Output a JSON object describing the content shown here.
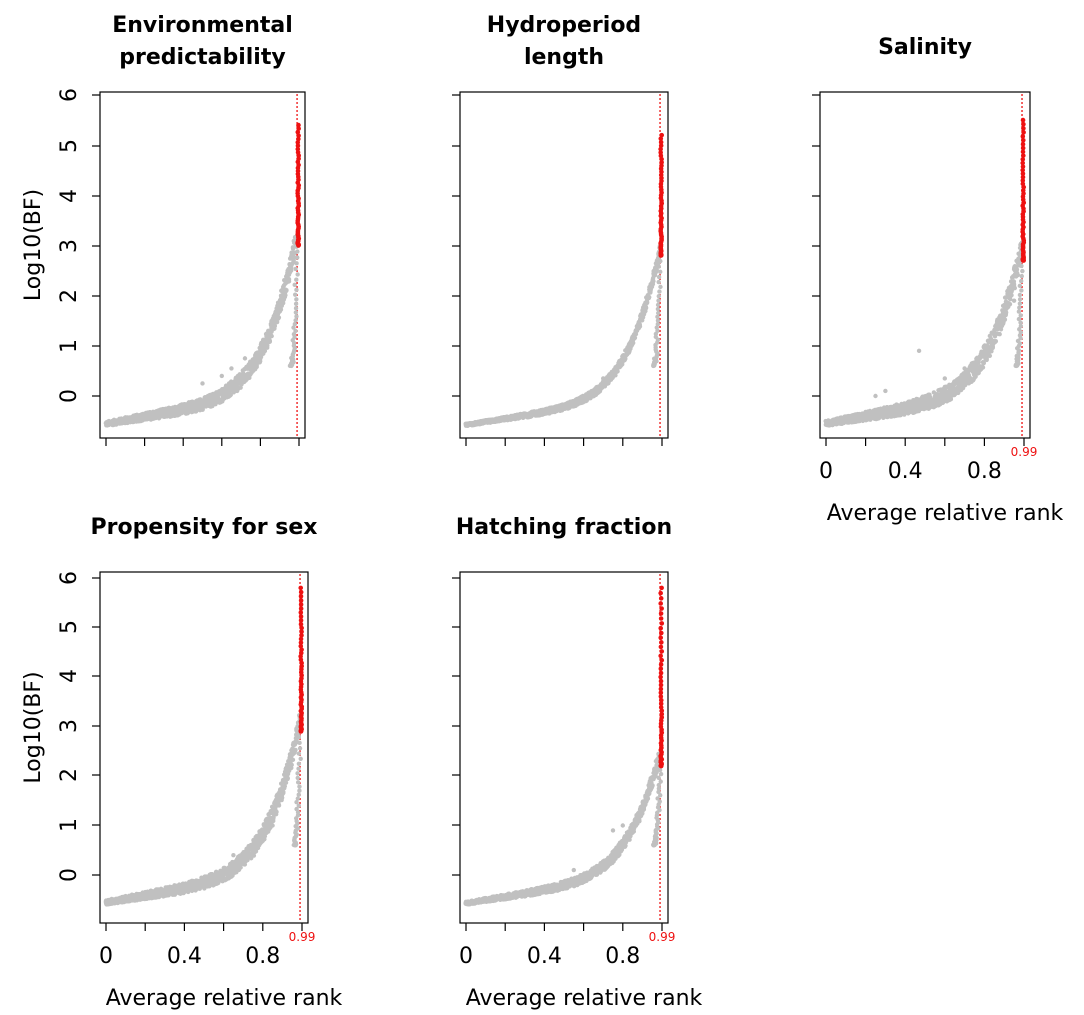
{
  "chart_data": [
    {
      "type": "scatter",
      "title": [
        "Environmental",
        "predictability"
      ],
      "ylabel": "Log10(BF)",
      "xlabel": "",
      "ylim": [
        -0.7,
        6.1
      ],
      "xlim": [
        0,
        1
      ],
      "yticks": [
        "0",
        "1",
        "2",
        "3",
        "4",
        "5",
        "6"
      ],
      "xticks": [],
      "threshold": 0.99,
      "threshold_label": "",
      "colors": {
        "background_points": "#c0c0c0",
        "significant_points": "#ee1111",
        "threshold_line": "#ee1111"
      },
      "curve": {
        "start": -0.6,
        "cutoff_y": 3.0,
        "max_y": 5.4,
        "spread": 0.3
      },
      "outliers": [
        [
          0.72,
          0.75
        ],
        [
          0.5,
          0.25
        ],
        [
          0.6,
          0.4
        ],
        [
          0.65,
          0.55
        ]
      ]
    },
    {
      "type": "scatter",
      "title": [
        "Hydroperiod",
        "length"
      ],
      "ylabel": "",
      "xlabel": "",
      "ylim": [
        -0.7,
        6.1
      ],
      "xlim": [
        0,
        1
      ],
      "yticks": [],
      "xticks": [],
      "threshold": 0.99,
      "threshold_label": "",
      "colors": {
        "background_points": "#c0c0c0",
        "significant_points": "#ee1111",
        "threshold_line": "#ee1111"
      },
      "curve": {
        "start": -0.6,
        "cutoff_y": 2.8,
        "max_y": 5.2,
        "spread": 0.15
      },
      "outliers": [
        [
          0.7,
          0.35
        ],
        [
          0.8,
          0.8
        ]
      ]
    },
    {
      "type": "scatter",
      "title": [
        "Salinity"
      ],
      "ylabel": "",
      "xlabel": "Average relative rank",
      "ylim": [
        -0.7,
        6.1
      ],
      "xlim": [
        0,
        1
      ],
      "yticks": [],
      "xticks": [
        "0",
        "0.4",
        "0.8"
      ],
      "threshold": 0.99,
      "threshold_label": "0.99",
      "colors": {
        "background_points": "#c0c0c0",
        "significant_points": "#ee1111",
        "threshold_line": "#ee1111"
      },
      "curve": {
        "start": -0.6,
        "cutoff_y": 2.7,
        "max_y": 5.5,
        "spread": 0.35
      },
      "outliers": [
        [
          0.47,
          0.9
        ],
        [
          0.3,
          0.1
        ],
        [
          0.25,
          0.0
        ],
        [
          0.6,
          0.35
        ],
        [
          0.7,
          0.55
        ],
        [
          0.82,
          1.1
        ],
        [
          0.88,
          1.6
        ],
        [
          0.95,
          1.9
        ]
      ]
    },
    {
      "type": "scatter",
      "title": [
        "Propensity for sex"
      ],
      "ylabel": "Log10(BF)",
      "xlabel": "Average relative rank",
      "ylim": [
        -0.7,
        6.1
      ],
      "xlim": [
        0,
        1
      ],
      "yticks": [
        "0",
        "1",
        "2",
        "3",
        "4",
        "5",
        "6"
      ],
      "xticks": [
        "0",
        "0.4",
        "0.8"
      ],
      "threshold": 0.99,
      "threshold_label": "0.99",
      "colors": {
        "background_points": "#c0c0c0",
        "significant_points": "#ee1111",
        "threshold_line": "#ee1111"
      },
      "curve": {
        "start": -0.6,
        "cutoff_y": 2.9,
        "max_y": 5.8,
        "spread": 0.3
      },
      "outliers": [
        [
          0.85,
          1.0
        ],
        [
          0.75,
          0.6
        ],
        [
          0.65,
          0.4
        ],
        [
          0.93,
          2.3
        ]
      ]
    },
    {
      "type": "scatter",
      "title": [
        "Hatching fraction"
      ],
      "ylabel": "",
      "xlabel": "Average relative rank",
      "ylim": [
        -0.7,
        6.1
      ],
      "xlim": [
        0,
        1
      ],
      "yticks": [],
      "xticks": [
        "0",
        "0.4",
        "0.8"
      ],
      "threshold": 0.99,
      "threshold_label": "0.99",
      "colors": {
        "background_points": "#c0c0c0",
        "significant_points": "#ee1111",
        "threshold_line": "#ee1111"
      },
      "curve": {
        "start": -0.6,
        "cutoff_y": 2.2,
        "max_y": 5.8,
        "spread": 0.2
      },
      "outliers": [
        [
          0.8,
          1.0
        ],
        [
          0.75,
          0.9
        ],
        [
          0.55,
          0.1
        ]
      ]
    }
  ]
}
